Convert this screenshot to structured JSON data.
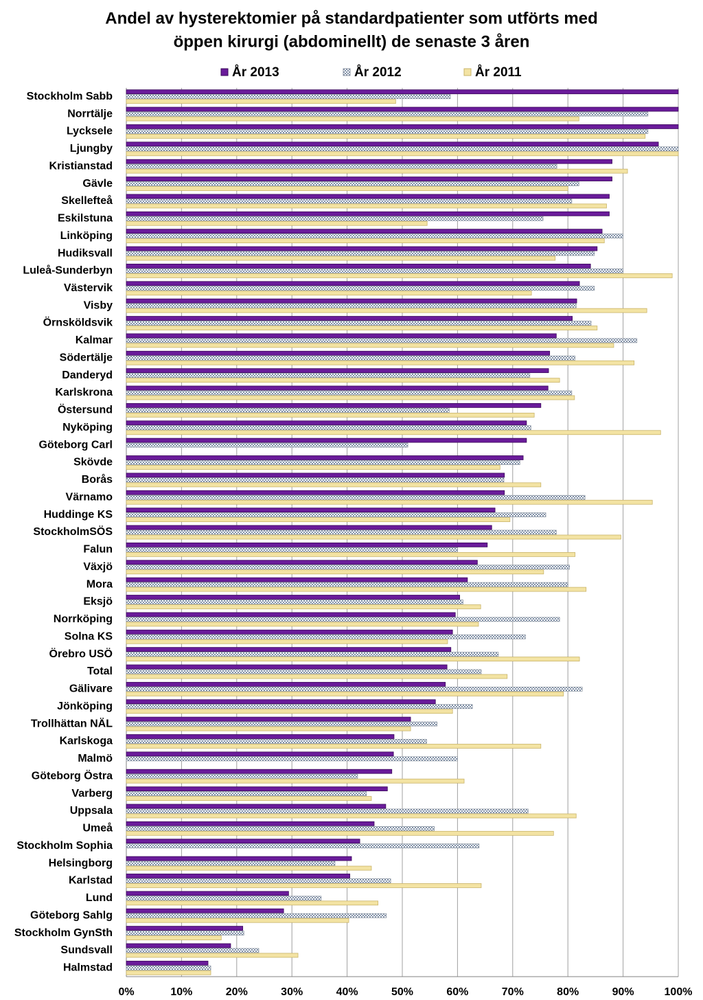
{
  "chart_data": {
    "type": "bar",
    "orientation": "horizontal",
    "title": "Andel av hysterektomier på standardpatienter som utförts med",
    "subtitle": "öppen kirurgi (abdominellt) de senaste 3 åren",
    "categories": [
      "Stockholm Sabb",
      "Norrtälje",
      "Lycksele",
      "Ljungby",
      "Kristianstad",
      "Gävle",
      "Skellefteå",
      "Eskilstuna",
      "Linköping",
      "Hudiksvall",
      "Luleå-Sunderbyn",
      "Västervik",
      "Visby",
      "Örnsköldsvik",
      "Kalmar",
      "Södertälje",
      "Danderyd",
      "Karlskrona",
      "Östersund",
      "Nyköping",
      "Göteborg Carl",
      "Skövde",
      "Borås",
      "Värnamo",
      "Huddinge KS",
      "StockholmSÖS",
      "Falun",
      "Växjö",
      "Mora",
      "Eksjö",
      "Norrköping",
      "Solna KS",
      "Örebro USÖ",
      "Total",
      "Gälivare",
      "Jönköping",
      "Trollhättan NÄL",
      "Karlskoga",
      "Malmö",
      "Göteborg Östra",
      "Varberg",
      "Uppsala",
      "Umeå",
      "Stockholm Sophia",
      "Helsingborg",
      "Karlstad",
      "Lund",
      "Göteborg Sahlg",
      "Stockholm GynSth",
      "Sundsvall",
      "Halmstad"
    ],
    "series": [
      {
        "name": "År 2013",
        "color": "#6a1b9a",
        "values": [
          100,
          100,
          100,
          96.4,
          88,
          88,
          87.5,
          87.5,
          86.2,
          85.3,
          84.1,
          82.1,
          81.6,
          80.8,
          77.9,
          76.7,
          76.5,
          76.4,
          75.1,
          72.5,
          72.5,
          71.9,
          68.5,
          68.5,
          66.8,
          66.2,
          65.4,
          63.6,
          61.8,
          60.4,
          59.6,
          59.1,
          58.8,
          58.1,
          57.8,
          56,
          51.5,
          48.5,
          48.4,
          48.1,
          47.3,
          47,
          44.9,
          42.3,
          40.8,
          40.5,
          29.4,
          28.5,
          21.1,
          18.9,
          14.8
        ]
      },
      {
        "name": "År 2012",
        "color": "#7f8fa6",
        "values": [
          58.7,
          94.5,
          94.5,
          100,
          78,
          82,
          80.7,
          75.5,
          90,
          84.8,
          90,
          84.8,
          81.5,
          84.2,
          92.5,
          81.3,
          73.1,
          80.7,
          58.5,
          73.3,
          51,
          71.3,
          68.4,
          83.1,
          76,
          77.9,
          60,
          80.3,
          80,
          61,
          78.5,
          72.3,
          67.4,
          64.3,
          82.6,
          62.7,
          56.3,
          54.4,
          60,
          41.9,
          43.5,
          72.8,
          55.8,
          63.9,
          37.8,
          47.9,
          35.3,
          47.1,
          21.3,
          24,
          15.3
        ]
      },
      {
        "name": "År 2011",
        "color": "#f3e3a3",
        "values": [
          48.8,
          82,
          94,
          100,
          90.8,
          80,
          87,
          54.5,
          86.6,
          77.7,
          98.9,
          73.4,
          94.3,
          85.3,
          88.3,
          92,
          78.5,
          81.2,
          73.9,
          96.8,
          null,
          67.7,
          75.1,
          95.3,
          69.5,
          89.6,
          81.3,
          75.6,
          83.3,
          64.2,
          63.8,
          58.2,
          82.1,
          69,
          79.2,
          59.1,
          51.5,
          75.1,
          null,
          61.2,
          44.4,
          81.5,
          77.4,
          null,
          44.4,
          64.3,
          45.6,
          40.3,
          17.2,
          31.1,
          15.3
        ]
      }
    ],
    "xlim": [
      0,
      100
    ],
    "xticks": [
      {
        "value": 0,
        "label": "0%"
      },
      {
        "value": 10,
        "label": "10%"
      },
      {
        "value": 20,
        "label": "20%"
      },
      {
        "value": 30,
        "label": "30%"
      },
      {
        "value": 40,
        "label": "40%"
      },
      {
        "value": 50,
        "label": "50%"
      },
      {
        "value": 60,
        "label": "60%"
      },
      {
        "value": 70,
        "label": "70%"
      },
      {
        "value": 80,
        "label": "80%"
      },
      {
        "value": 90,
        "label": "90%"
      },
      {
        "value": 100,
        "label": "100%"
      }
    ],
    "grid": true,
    "legend": "top"
  }
}
